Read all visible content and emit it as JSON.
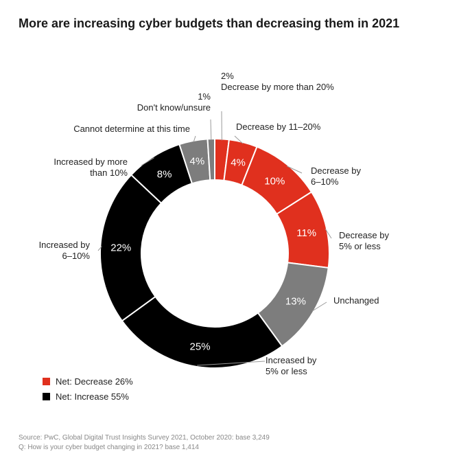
{
  "title": "More are increasing cyber budgets than decreasing them in 2021",
  "chart_data": {
    "type": "pie",
    "donut": true,
    "title": "More are increasing cyber budgets than decreasing them in 2021",
    "slices": [
      {
        "label_lines": [
          "Decrease by more than 20%"
        ],
        "value": 2,
        "display": "2%",
        "color": "#e0301e"
      },
      {
        "label_lines": [
          "Decrease by 11–20%"
        ],
        "value": 4,
        "display": "4%",
        "color": "#e0301e"
      },
      {
        "label_lines": [
          "Decrease by",
          "6–10%"
        ],
        "value": 10,
        "display": "10%",
        "color": "#e0301e"
      },
      {
        "label_lines": [
          "Decrease by",
          "5% or less"
        ],
        "value": 11,
        "display": "11%",
        "color": "#e0301e"
      },
      {
        "label_lines": [
          "Unchanged"
        ],
        "value": 13,
        "display": "13%",
        "color": "#7d7d7d"
      },
      {
        "label_lines": [
          "Increased by",
          "5% or less"
        ],
        "value": 25,
        "display": "25%",
        "color": "#000000"
      },
      {
        "label_lines": [
          "Increased by",
          "6–10%"
        ],
        "value": 22,
        "display": "22%",
        "color": "#000000"
      },
      {
        "label_lines": [
          "Increased by more",
          "than 10%"
        ],
        "value": 8,
        "display": "8%",
        "color": "#000000"
      },
      {
        "label_lines": [
          "Cannot determine at this time"
        ],
        "value": 4,
        "display": "4%",
        "color": "#7d7d7d"
      },
      {
        "label_lines": [
          "Don't know/unsure"
        ],
        "value": 1,
        "display": "1%",
        "color": "#7d7d7d"
      }
    ]
  },
  "legend": [
    {
      "label": "Net: Decrease 26%",
      "color": "#e0301e"
    },
    {
      "label": "Net: Increase 55%",
      "color": "#000000"
    }
  ],
  "footer": {
    "source": "Source: PwC, Global Digital Trust Insights Survey 2021, October 2020: base 3,249",
    "question": "Q: How is your cyber budget changing in 2021? base 1,414"
  }
}
